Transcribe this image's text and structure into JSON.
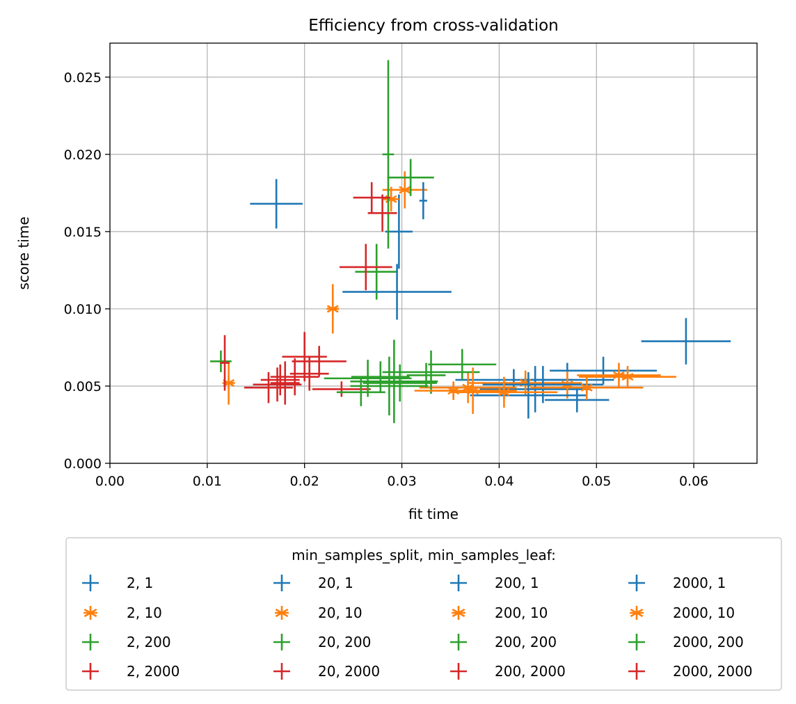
{
  "chart_data": {
    "type": "scatter",
    "title": "Efficiency from cross-validation",
    "xlabel": "fit time",
    "ylabel": "score time",
    "xlim": [
      0,
      0.0665
    ],
    "ylim": [
      0,
      0.0272
    ],
    "xticks": [
      "0.00",
      "0.01",
      "0.02",
      "0.03",
      "0.04",
      "0.05",
      "0.06"
    ],
    "yticks": [
      "0.000",
      "0.005",
      "0.010",
      "0.015",
      "0.020",
      "0.025"
    ],
    "grid": true,
    "legend": {
      "title": "min_samples_split, min_samples_leaf:",
      "placement": "below",
      "columns": 4
    },
    "series": [
      {
        "name": "2, 1",
        "color": "#1f77b4",
        "marker": "+",
        "points": [
          {
            "x": 0.0171,
            "y": 0.0168,
            "xerr": 0.0027,
            "yerr": 0.0016
          },
          {
            "x": 0.0592,
            "y": 0.0079,
            "xerr": 0.0046,
            "yerr": 0.0015
          }
        ]
      },
      {
        "name": "2, 10",
        "color": "#ff7f0e",
        "marker": "*",
        "points": [
          {
            "x": 0.0122,
            "y": 0.0052,
            "xerr": 0.0005,
            "yerr": 0.0014
          },
          {
            "x": 0.0229,
            "y": 0.01,
            "xerr": 0.0005,
            "yerr": 0.0016
          }
        ]
      },
      {
        "name": "2, 200",
        "color": "#2ca02c",
        "marker": "+",
        "points": [
          {
            "x": 0.0114,
            "y": 0.0066,
            "xerr": 0.0011,
            "yerr": 0.0007
          },
          {
            "x": 0.0274,
            "y": 0.0124,
            "xerr": 0.0022,
            "yerr": 0.0018
          }
        ]
      },
      {
        "name": "2, 2000",
        "color": "#d62728",
        "marker": "+",
        "points": [
          {
            "x": 0.0118,
            "y": 0.0065,
            "xerr": 0.0005,
            "yerr": 0.0018
          },
          {
            "x": 0.0263,
            "y": 0.0127,
            "xerr": 0.0027,
            "yerr": 0.0015
          }
        ]
      },
      {
        "name": "20, 1",
        "color": "#1f77b4",
        "marker": "+",
        "points": [
          {
            "x": 0.0295,
            "y": 0.0111,
            "xerr": 0.0056,
            "yerr": 0.0018
          },
          {
            "x": 0.0297,
            "y": 0.015,
            "xerr": 0.0014,
            "yerr": 0.0024
          }
        ]
      },
      {
        "name": "20, 10",
        "color": "#ff7f0e",
        "marker": "*",
        "points": [
          {
            "x": 0.0303,
            "y": 0.0177,
            "xerr": 0.0023,
            "yerr": 0.0012
          },
          {
            "x": 0.0289,
            "y": 0.0171,
            "xerr": 0.0008,
            "yerr": 0.0008
          }
        ]
      },
      {
        "name": "20, 200",
        "color": "#2ca02c",
        "marker": "+",
        "points": [
          {
            "x": 0.0286,
            "y": 0.02,
            "xerr": 0.0006,
            "yerr": 0.0061
          },
          {
            "x": 0.0309,
            "y": 0.0185,
            "xerr": 0.0024,
            "yerr": 0.0012
          }
        ]
      },
      {
        "name": "20, 2000",
        "color": "#d62728",
        "marker": "+",
        "points": [
          {
            "x": 0.0269,
            "y": 0.0172,
            "xerr": 0.0019,
            "yerr": 0.001
          },
          {
            "x": 0.028,
            "y": 0.0162,
            "xerr": 0.0015,
            "yerr": 0.0012
          }
        ]
      },
      {
        "name": "200, 1",
        "color": "#1f77b4",
        "marker": "+",
        "points": [
          {
            "x": 0.0322,
            "y": 0.017,
            "xerr": 0.0004,
            "yerr": 0.0012
          },
          {
            "x": 0.0415,
            "y": 0.0054,
            "xerr": 0.006,
            "yerr": 0.0007
          },
          {
            "x": 0.0437,
            "y": 0.0048,
            "xerr": 0.0057,
            "yerr": 0.0015
          },
          {
            "x": 0.047,
            "y": 0.0054,
            "xerr": 0.0048,
            "yerr": 0.0011
          }
        ]
      },
      {
        "name": "200, 10",
        "color": "#ff7f0e",
        "marker": "*",
        "points": [
          {
            "x": 0.0353,
            "y": 0.0047,
            "xerr": 0.004,
            "yerr": 0.0006
          },
          {
            "x": 0.0368,
            "y": 0.0049,
            "xerr": 0.005,
            "yerr": 0.001
          },
          {
            "x": 0.0427,
            "y": 0.0052,
            "xerr": 0.0058,
            "yerr": 0.0008
          },
          {
            "x": 0.047,
            "y": 0.0051,
            "xerr": 0.003,
            "yerr": 0.0009
          }
        ]
      },
      {
        "name": "200, 200",
        "color": "#2ca02c",
        "marker": "+",
        "points": [
          {
            "x": 0.0287,
            "y": 0.005,
            "xerr": 0.004,
            "yerr": 0.0019
          },
          {
            "x": 0.0292,
            "y": 0.0053,
            "xerr": 0.0045,
            "yerr": 0.0027
          },
          {
            "x": 0.033,
            "y": 0.0059,
            "xerr": 0.005,
            "yerr": 0.0014
          },
          {
            "x": 0.0362,
            "y": 0.0064,
            "xerr": 0.0035,
            "yerr": 0.001
          }
        ]
      },
      {
        "name": "200, 2000",
        "color": "#d62728",
        "marker": "+",
        "points": [
          {
            "x": 0.0172,
            "y": 0.0051,
            "xerr": 0.0025,
            "yerr": 0.0011
          },
          {
            "x": 0.02,
            "y": 0.0069,
            "xerr": 0.0023,
            "yerr": 0.0016
          },
          {
            "x": 0.0215,
            "y": 0.0066,
            "xerr": 0.0028,
            "yerr": 0.001
          },
          {
            "x": 0.0238,
            "y": 0.0048,
            "xerr": 0.003,
            "yerr": 0.0005
          }
        ]
      },
      {
        "name": "2000, 1",
        "color": "#1f77b4",
        "marker": "+",
        "points": [
          {
            "x": 0.043,
            "y": 0.0044,
            "xerr": 0.006,
            "yerr": 0.0015
          },
          {
            "x": 0.0445,
            "y": 0.0051,
            "xerr": 0.0062,
            "yerr": 0.0012
          },
          {
            "x": 0.048,
            "y": 0.0041,
            "xerr": 0.0033,
            "yerr": 0.0008
          },
          {
            "x": 0.0507,
            "y": 0.006,
            "xerr": 0.0055,
            "yerr": 0.0009
          }
        ]
      },
      {
        "name": "2000, 10",
        "color": "#ff7f0e",
        "marker": "*",
        "points": [
          {
            "x": 0.0373,
            "y": 0.0047,
            "xerr": 0.0045,
            "yerr": 0.0015
          },
          {
            "x": 0.0405,
            "y": 0.0046,
            "xerr": 0.0055,
            "yerr": 0.001
          },
          {
            "x": 0.049,
            "y": 0.0049,
            "xerr": 0.0058,
            "yerr": 0.0008
          },
          {
            "x": 0.0523,
            "y": 0.0057,
            "xerr": 0.0043,
            "yerr": 0.0008
          },
          {
            "x": 0.0532,
            "y": 0.0056,
            "xerr": 0.005,
            "yerr": 0.0007
          }
        ]
      },
      {
        "name": "2000, 200",
        "color": "#2ca02c",
        "marker": "+",
        "points": [
          {
            "x": 0.0258,
            "y": 0.0046,
            "xerr": 0.0025,
            "yerr": 0.0009
          },
          {
            "x": 0.0265,
            "y": 0.0055,
            "xerr": 0.0045,
            "yerr": 0.0012
          },
          {
            "x": 0.0278,
            "y": 0.0056,
            "xerr": 0.003,
            "yerr": 0.001
          },
          {
            "x": 0.0298,
            "y": 0.0052,
            "xerr": 0.0038,
            "yerr": 0.0012
          },
          {
            "x": 0.0325,
            "y": 0.0057,
            "xerr": 0.002,
            "yerr": 0.0008
          }
        ]
      },
      {
        "name": "2000, 2000",
        "color": "#d62728",
        "marker": "+",
        "points": [
          {
            "x": 0.0163,
            "y": 0.0049,
            "xerr": 0.0025,
            "yerr": 0.001
          },
          {
            "x": 0.0175,
            "y": 0.0054,
            "xerr": 0.002,
            "yerr": 0.001
          },
          {
            "x": 0.018,
            "y": 0.0052,
            "xerr": 0.0015,
            "yerr": 0.0014
          },
          {
            "x": 0.019,
            "y": 0.0056,
            "xerr": 0.0025,
            "yerr": 0.0012
          },
          {
            "x": 0.0205,
            "y": 0.0058,
            "xerr": 0.002,
            "yerr": 0.0011
          }
        ]
      }
    ]
  }
}
